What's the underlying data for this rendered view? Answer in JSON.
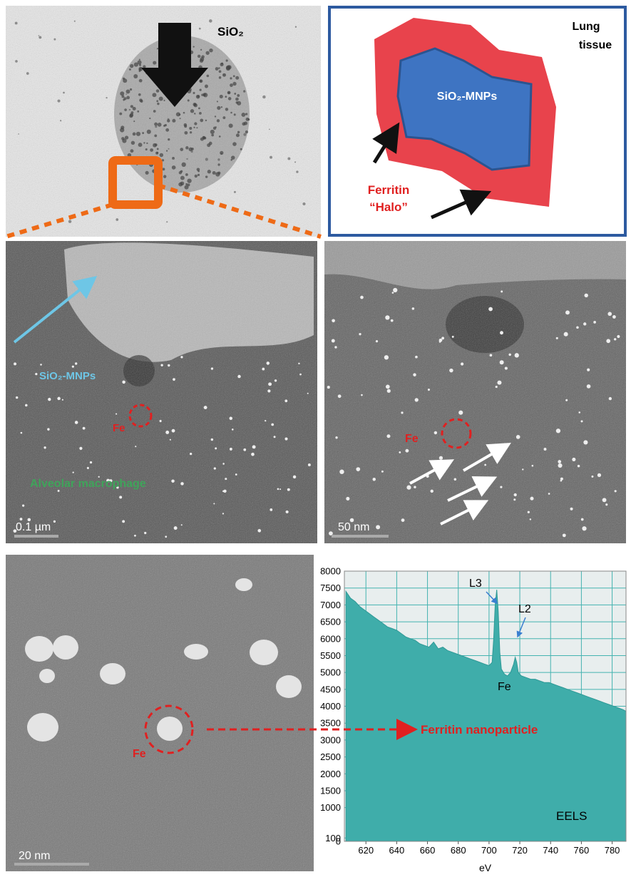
{
  "panel_a": {
    "label": "SiO₂"
  },
  "panel_b": {
    "title_line1": "Lung",
    "title_line2": "tissue",
    "core": "SiO₂-MNPs",
    "halo_line1": "Ferritin",
    "halo_line2": "“Halo”"
  },
  "panel_c": {
    "particles": "SiO₂-MNPs",
    "fe": "Fe",
    "cell": "Alveolar macrophage",
    "scale": "0.1 µm"
  },
  "panel_d": {
    "fe": "Fe",
    "scale": "50 nm"
  },
  "panel_e": {
    "fe": "Fe",
    "scale": "20 nm",
    "pointer": "Ferritin nanoparticle"
  },
  "chart_data": {
    "type": "area",
    "x_label": "eV",
    "legend_text": "EELS",
    "annotations": {
      "l3": "L3",
      "l2": "L2",
      "fe": "Fe"
    },
    "color": "#3fadaa",
    "grid": true,
    "xlim": [
      606,
      789
    ],
    "ylim": [
      0,
      8000
    ],
    "xticks": [
      620,
      640,
      660,
      680,
      700,
      720,
      740,
      760,
      780
    ],
    "yticks": [
      0,
      100,
      1000,
      1500,
      2000,
      2500,
      3000,
      3500,
      4000,
      4500,
      5000,
      5500,
      6000,
      6500,
      7000,
      7500,
      8000
    ],
    "x": [
      607,
      610,
      613,
      616,
      619,
      622,
      625,
      628,
      631,
      634,
      637,
      640,
      643,
      646,
      649,
      652,
      655,
      658,
      661,
      664,
      667,
      670,
      673,
      676,
      679,
      682,
      685,
      688,
      691,
      694,
      697,
      700,
      702,
      703,
      704,
      705,
      706,
      707,
      708,
      710,
      712,
      714,
      716,
      717,
      718,
      719,
      721,
      724,
      727,
      730,
      733,
      736,
      739,
      742,
      745,
      748,
      751,
      754,
      757,
      760,
      763,
      766,
      769,
      772,
      775,
      778,
      781,
      784,
      787,
      789
    ],
    "values": [
      7400,
      7200,
      7100,
      6950,
      6850,
      6750,
      6650,
      6550,
      6450,
      6350,
      6300,
      6250,
      6150,
      6050,
      6000,
      5950,
      5850,
      5800,
      5750,
      5900,
      5700,
      5750,
      5650,
      5600,
      5550,
      5500,
      5450,
      5400,
      5350,
      5300,
      5250,
      5200,
      5300,
      6000,
      7000,
      7450,
      6800,
      5600,
      5100,
      4950,
      4900,
      5000,
      5250,
      5450,
      5300,
      5000,
      4900,
      4850,
      4800,
      4800,
      4750,
      4700,
      4700,
      4650,
      4600,
      4550,
      4500,
      4450,
      4400,
      4350,
      4300,
      4250,
      4200,
      4150,
      4100,
      4050,
      4000,
      3950,
      3900,
      3850
    ]
  }
}
